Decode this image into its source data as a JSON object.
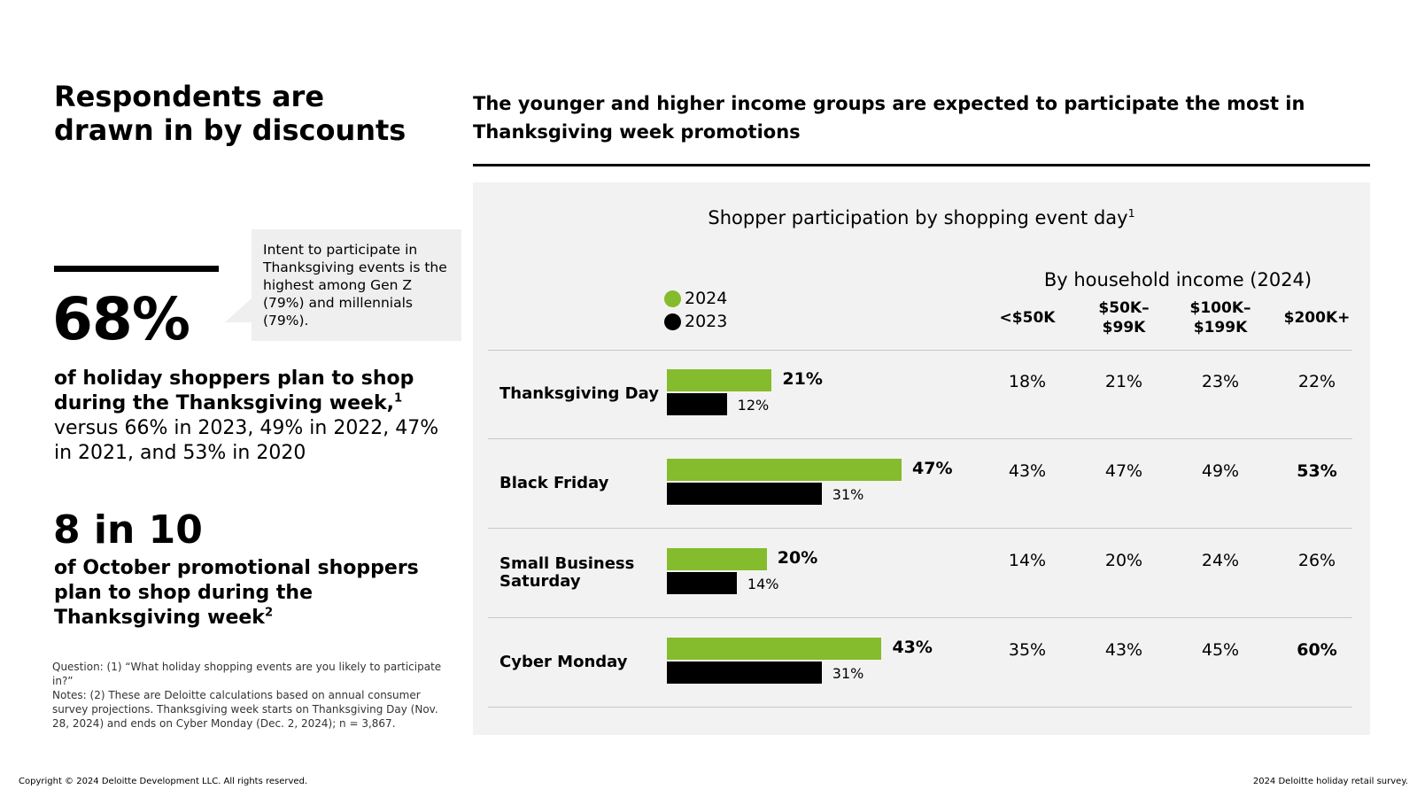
{
  "left": {
    "title": "Respondents are drawn in by discounts",
    "stat1": {
      "value": "68%",
      "desc_strong": "of holiday shoppers plan to shop during the Thanksgiving week,",
      "desc_strong_sup": "1",
      "desc_sub": "versus 66% in 2023, 49% in 2022, 47% in 2021, and 53% in 2020"
    },
    "callout": "Intent to participate in Thanksgiving events is the highest among Gen Z (79%) and millennials (79%).",
    "stat2": {
      "value": "8 in 10",
      "desc": "of October promotional shoppers plan to shop during the Thanksgiving week",
      "desc_sup": "2"
    },
    "footnote_question": "Question: (1) “What holiday shopping events are you likely to participate in?”",
    "footnote_notes": "Notes: (2) These are Deloitte calculations based on annual consumer survey projections. Thanksgiving week starts on Thanksgiving Day (Nov. 28, 2024) and ends on Cyber Monday (Dec. 2, 2024); n = 3,867."
  },
  "footer": {
    "copyright": "Copyright © 2024 Deloitte Development LLC. All rights reserved.",
    "source": "2024 Deloitte holiday retail survey."
  },
  "right": {
    "heading": "The younger and higher income groups are expected to participate the most in Thanksgiving week promotions"
  },
  "colors": {
    "series_2024": "#84bc2d",
    "series_2023": "#000000"
  },
  "chart_data": {
    "type": "bar",
    "title": "Shopper participation by shopping event day",
    "title_sup": "1",
    "categories": [
      "Thanksgiving Day",
      "Black Friday",
      "Small Business Saturday",
      "Cyber Monday"
    ],
    "series": [
      {
        "name": "2024",
        "values": [
          21,
          47,
          20,
          43
        ],
        "labels": [
          "21%",
          "47%",
          "20%",
          "43%"
        ]
      },
      {
        "name": "2023",
        "values": [
          12,
          31,
          14,
          31
        ],
        "labels": [
          "12%",
          "31%",
          "14%",
          "31%"
        ]
      }
    ],
    "xlim": [
      0,
      50
    ],
    "income_table": {
      "title": "By household income (2024)",
      "columns": [
        "<$50K",
        "$50K–$99K",
        "$100K–$199K",
        "$200K+"
      ],
      "rows": [
        [
          "18%",
          "21%",
          "23%",
          "22%"
        ],
        [
          "43%",
          "47%",
          "49%",
          "53%"
        ],
        [
          "14%",
          "20%",
          "24%",
          "26%"
        ],
        [
          "35%",
          "43%",
          "45%",
          "60%"
        ]
      ],
      "highlighted": [
        [
          1,
          3
        ],
        [
          3,
          3
        ]
      ]
    }
  }
}
